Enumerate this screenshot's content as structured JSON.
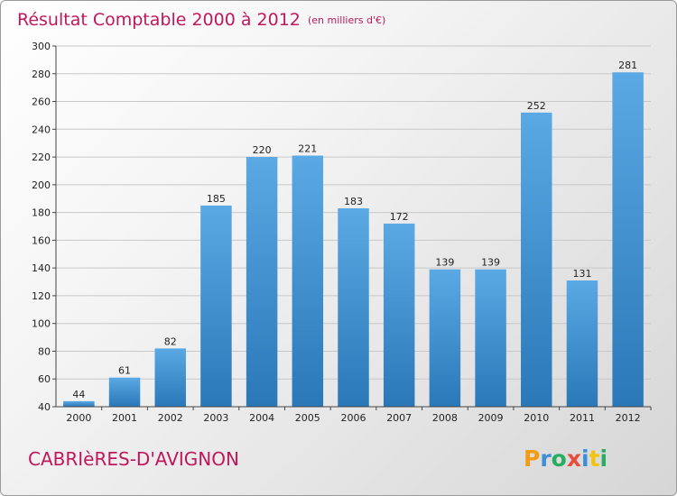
{
  "chart_data": {
    "type": "bar",
    "title": "Résultat Comptable 2000 à 2012",
    "subtitle": "(en milliers d'€)",
    "categories": [
      "2000",
      "2001",
      "2002",
      "2003",
      "2004",
      "2005",
      "2006",
      "2007",
      "2008",
      "2009",
      "2010",
      "2011",
      "2012"
    ],
    "values": [
      44,
      61,
      82,
      185,
      220,
      221,
      183,
      172,
      139,
      139,
      252,
      131,
      281
    ],
    "ylim": [
      40,
      300
    ],
    "yticks": [
      "40",
      "60",
      "80",
      "100",
      "120",
      "140",
      "160",
      "180",
      "200",
      "220",
      "240",
      "260",
      "280",
      "300"
    ],
    "grid": true,
    "bar_color_light": "#5aa9e4",
    "bar_color_dark": "#2a78b8",
    "title_color": "#c0185c"
  },
  "footer": {
    "commune": "CABRIèRES-D'AVIGNON",
    "logo": "Proxiti"
  }
}
